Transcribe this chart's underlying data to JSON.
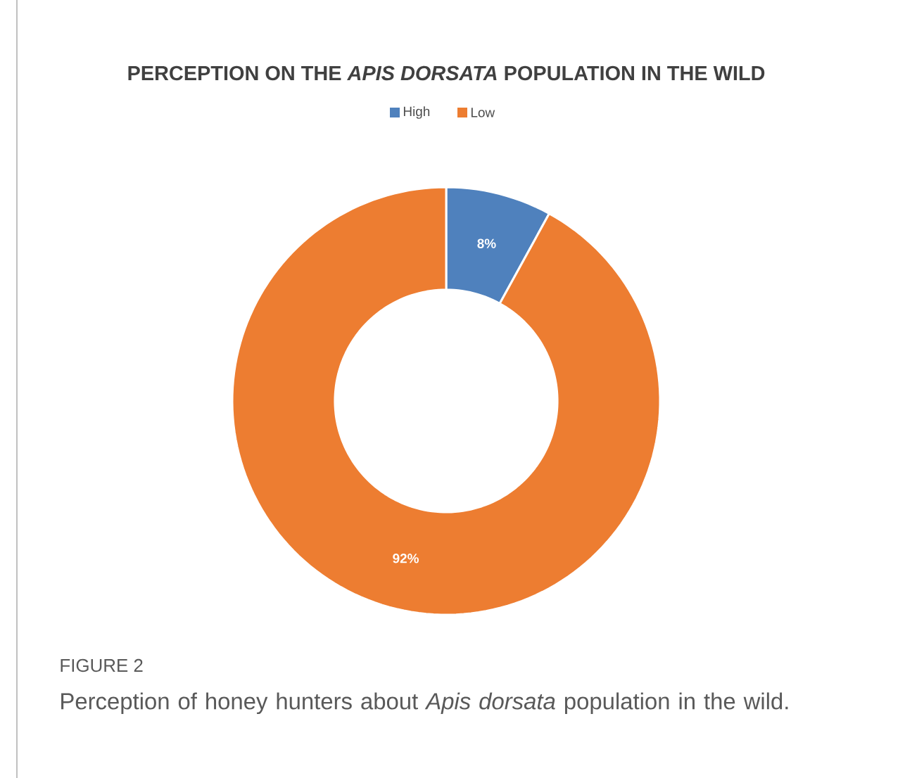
{
  "chart_data": {
    "type": "donut",
    "title": "PERCEPTION ON THE *APIS DORSATA* POPULATION IN THE WILD",
    "categories": [
      "High",
      "Low"
    ],
    "values": [
      8,
      92
    ],
    "colors": [
      "#4f81bd",
      "#ed7d31"
    ],
    "value_labels": [
      "8%",
      "92%"
    ],
    "legend": "top",
    "annotations": [
      "FIGURE 2",
      "Perception of honey hunters about *Apis dorsata* population in the wild."
    ]
  }
}
